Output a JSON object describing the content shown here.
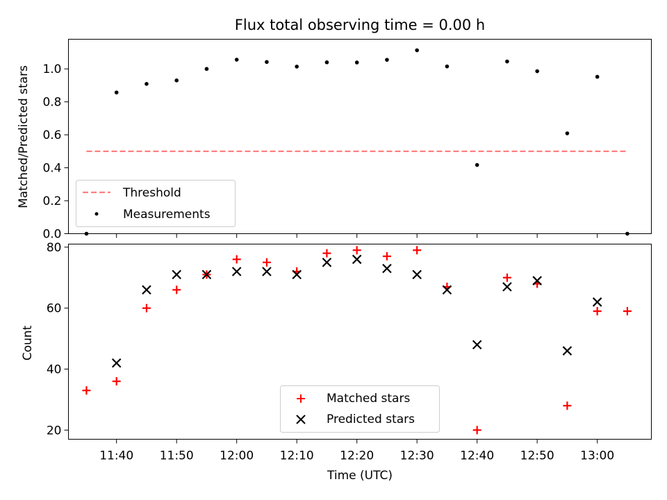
{
  "title": "Flux total observing time = 0.00 h",
  "colors": {
    "threshold": "#ff7f7f",
    "measurement": "#000000",
    "matched": "#ff0000",
    "predicted": "#000000"
  },
  "chart_data": [
    {
      "type": "scatter",
      "ylabel": "Matched/Predicted stars",
      "xlim": [
        "11:32",
        "13:09"
      ],
      "ylim": [
        0,
        1.18
      ],
      "yticks": [
        "0.0",
        "0.2",
        "0.4",
        "0.6",
        "0.8",
        "1.0"
      ],
      "legend_position": "lower-left",
      "threshold": {
        "name": "Threshold",
        "value": 0.5,
        "x_range": [
          "11:35",
          "13:05"
        ],
        "style": "dashed"
      },
      "series": [
        {
          "name": "Measurements",
          "marker": "dot",
          "points": [
            [
              "11:35",
              0.0
            ],
            [
              "11:40",
              0.857
            ],
            [
              "11:45",
              0.909
            ],
            [
              "11:50",
              0.93
            ],
            [
              "11:55",
              1.0
            ],
            [
              "12:00",
              1.056
            ],
            [
              "12:05",
              1.042
            ],
            [
              "12:10",
              1.014
            ],
            [
              "12:15",
              1.04
            ],
            [
              "12:20",
              1.039
            ],
            [
              "12:25",
              1.055
            ],
            [
              "12:30",
              1.113
            ],
            [
              "12:35",
              1.015
            ],
            [
              "12:40",
              0.417
            ],
            [
              "12:45",
              1.045
            ],
            [
              "12:50",
              0.986
            ],
            [
              "12:55",
              0.609
            ],
            [
              "13:00",
              0.952
            ],
            [
              "13:05",
              0.0
            ]
          ]
        }
      ]
    },
    {
      "type": "scatter",
      "xlabel": "Time (UTC)",
      "ylabel": "Count",
      "xlim": [
        "11:32",
        "13:09"
      ],
      "ylim": [
        17,
        81
      ],
      "yticks": [
        "20",
        "40",
        "60",
        "80"
      ],
      "xticks": [
        "11:40",
        "11:50",
        "12:00",
        "12:10",
        "12:20",
        "12:30",
        "12:40",
        "12:50",
        "13:00"
      ],
      "legend_position": "lower-center",
      "series": [
        {
          "name": "Matched stars",
          "marker": "plus",
          "points": [
            [
              "11:35",
              33
            ],
            [
              "11:40",
              36
            ],
            [
              "11:45",
              60
            ],
            [
              "11:50",
              66
            ],
            [
              "11:55",
              71
            ],
            [
              "12:00",
              76
            ],
            [
              "12:05",
              75
            ],
            [
              "12:10",
              72
            ],
            [
              "12:15",
              78
            ],
            [
              "12:20",
              79
            ],
            [
              "12:25",
              77
            ],
            [
              "12:30",
              79
            ],
            [
              "12:35",
              67
            ],
            [
              "12:40",
              20
            ],
            [
              "12:45",
              70
            ],
            [
              "12:50",
              68
            ],
            [
              "12:55",
              28
            ],
            [
              "13:00",
              59
            ],
            [
              "13:05",
              59
            ]
          ]
        },
        {
          "name": "Predicted stars",
          "marker": "x",
          "points": [
            [
              "11:40",
              42
            ],
            [
              "11:45",
              66
            ],
            [
              "11:50",
              71
            ],
            [
              "11:55",
              71
            ],
            [
              "12:00",
              72
            ],
            [
              "12:05",
              72
            ],
            [
              "12:10",
              71
            ],
            [
              "12:15",
              75
            ],
            [
              "12:20",
              76
            ],
            [
              "12:25",
              73
            ],
            [
              "12:30",
              71
            ],
            [
              "12:35",
              66
            ],
            [
              "12:40",
              48
            ],
            [
              "12:45",
              67
            ],
            [
              "12:50",
              69
            ],
            [
              "12:55",
              46
            ],
            [
              "13:00",
              62
            ]
          ]
        }
      ]
    }
  ]
}
